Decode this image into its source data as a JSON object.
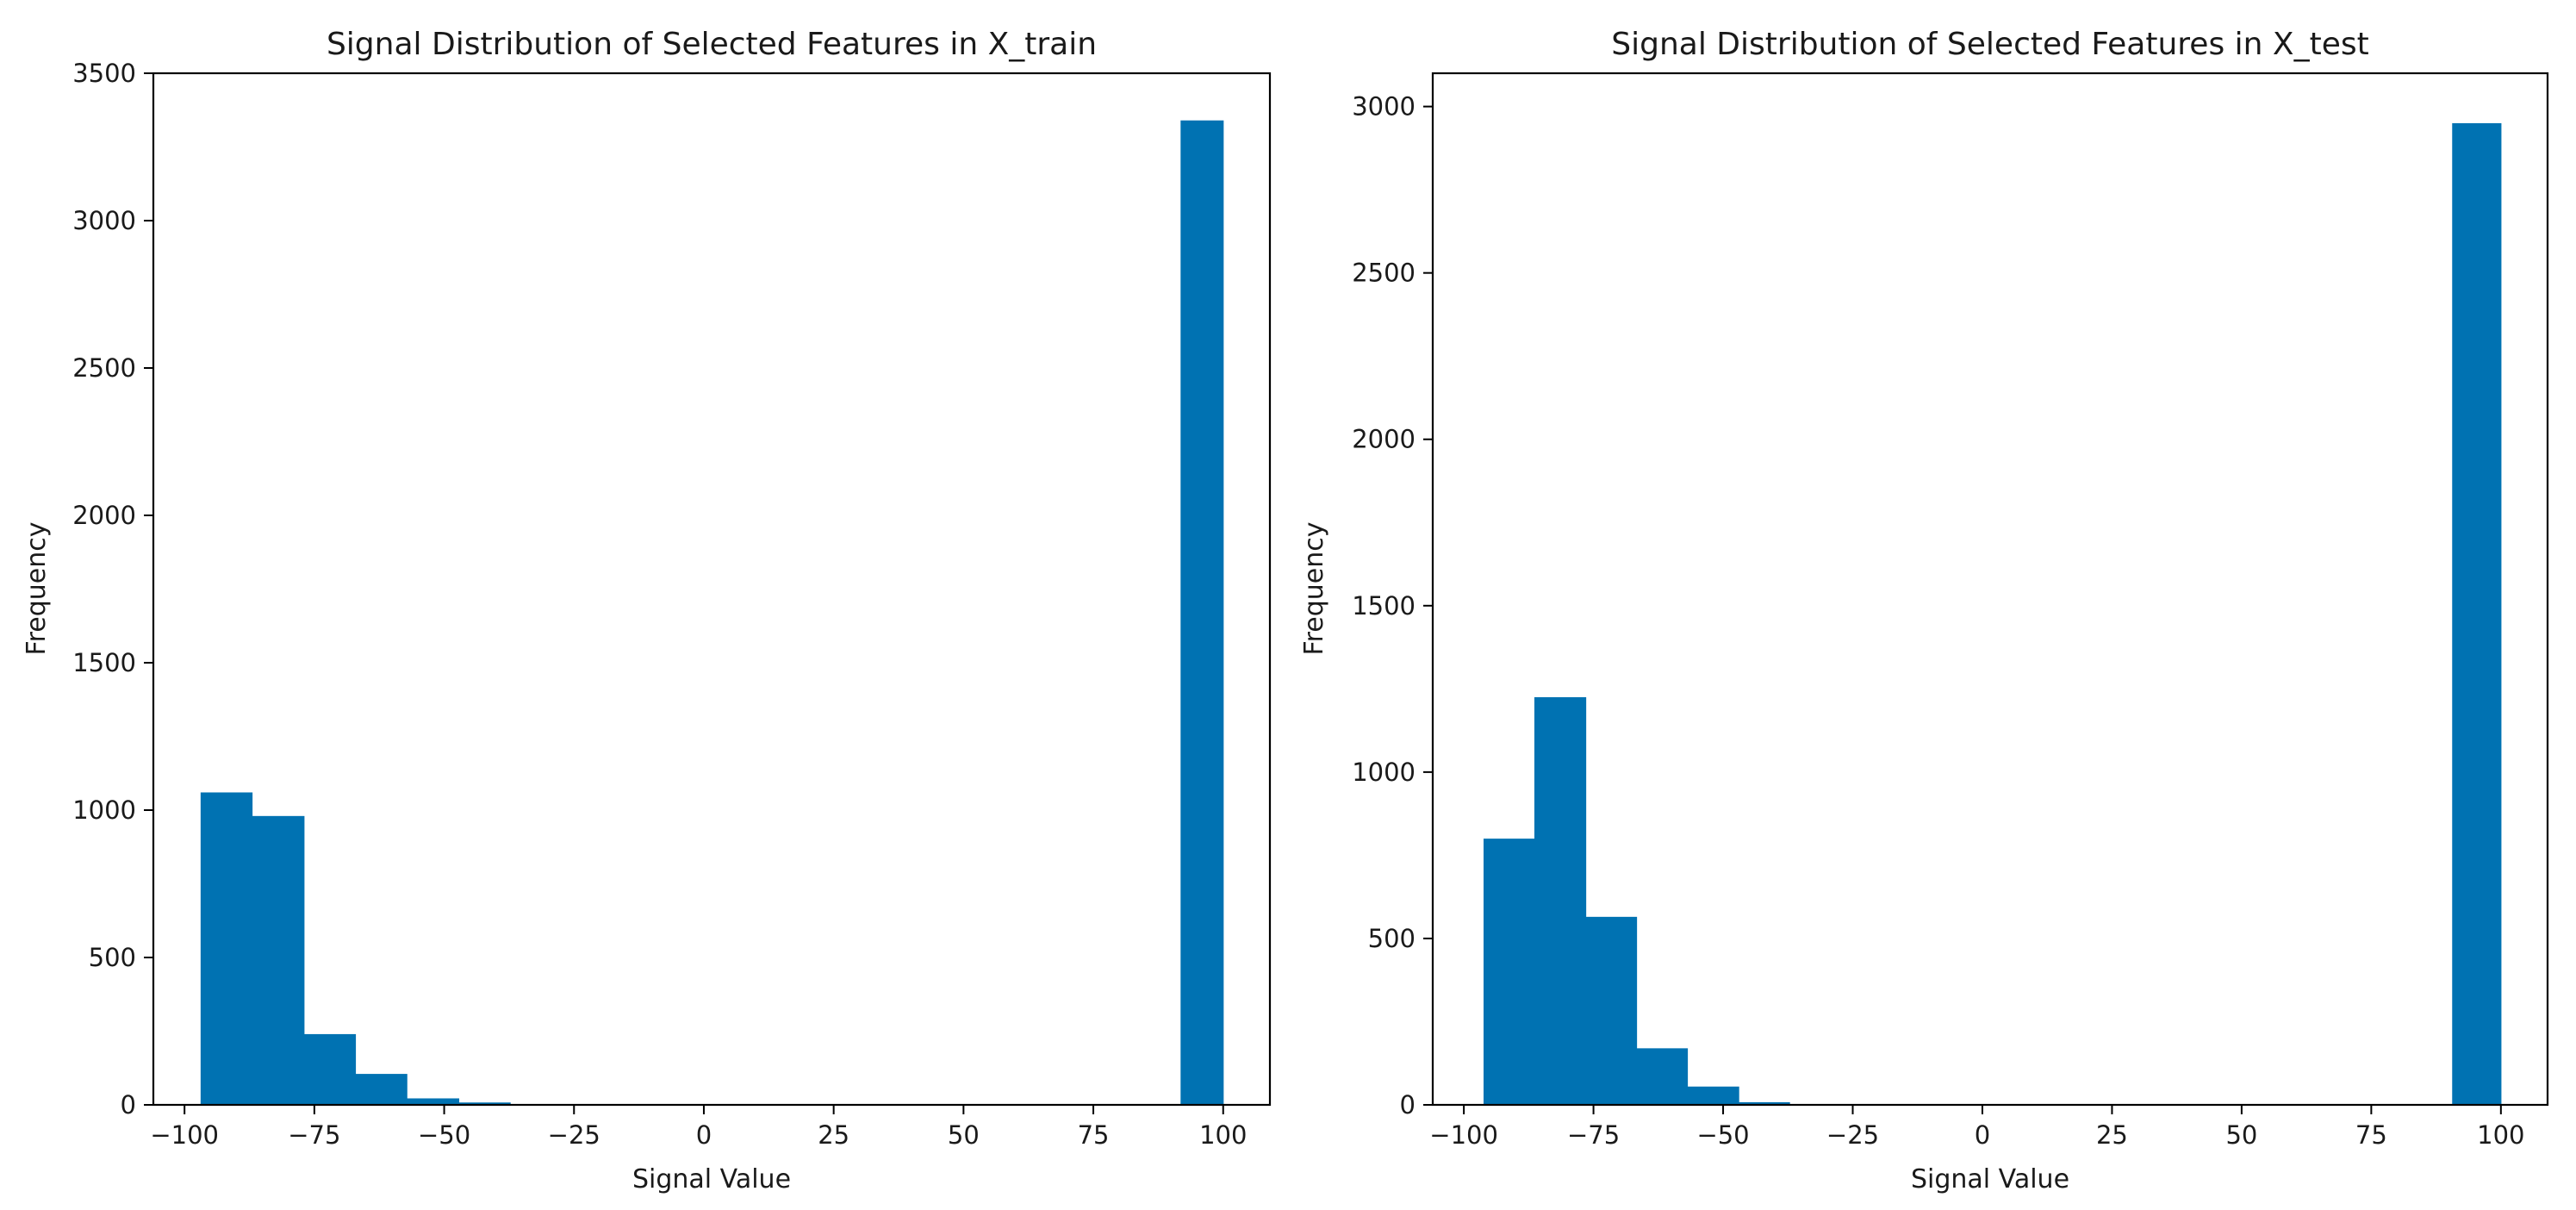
{
  "chart_data": [
    {
      "type": "bar",
      "title": "Signal Distribution of Selected Features in X_train",
      "xlabel": "Signal Value",
      "ylabel": "Frequency",
      "xlim": [
        -106,
        109
      ],
      "ylim": [
        0,
        3500
      ],
      "xticks": [
        -100,
        -75,
        -50,
        -25,
        0,
        25,
        50,
        75,
        100
      ],
      "xtick_labels": [
        "−100",
        "−75",
        "−50",
        "−25",
        "0",
        "25",
        "50",
        "75",
        "100"
      ],
      "yticks": [
        0,
        500,
        1000,
        1500,
        2000,
        2500,
        3000,
        3500
      ],
      "ytick_labels": [
        "0",
        "500",
        "1000",
        "1500",
        "2000",
        "2500",
        "3000",
        "3500"
      ],
      "bin_edges": [
        -96.9,
        -87.0,
        -77.0,
        -67.1,
        -57.2,
        -47.2,
        -37.3,
        -27.4,
        -17.4,
        -7.5,
        2.4,
        12.4,
        22.3,
        32.2,
        42.2,
        52.1,
        62.0,
        72.0,
        81.9,
        91.8,
        100
      ],
      "values": [
        1060,
        980,
        240,
        105,
        22,
        8,
        0,
        0,
        0,
        0,
        0,
        0,
        0,
        0,
        0,
        0,
        0,
        0,
        0,
        3340
      ],
      "bar_color": "#0072b2",
      "grid": false
    },
    {
      "type": "bar",
      "title": "Signal Distribution of Selected Features in X_test",
      "xlabel": "Signal Value",
      "ylabel": "Frequency",
      "xlim": [
        -106,
        109
      ],
      "ylim": [
        0,
        3100
      ],
      "xticks": [
        -100,
        -75,
        -50,
        -25,
        0,
        25,
        50,
        75,
        100
      ],
      "xtick_labels": [
        "−100",
        "−75",
        "−50",
        "−25",
        "0",
        "25",
        "50",
        "75",
        "100"
      ],
      "yticks": [
        0,
        500,
        1000,
        1500,
        2000,
        2500,
        3000
      ],
      "ytick_labels": [
        "0",
        "500",
        "1000",
        "1500",
        "2000",
        "2500",
        "3000"
      ],
      "bin_edges": [
        -96.2,
        -86.4,
        -76.5,
        -66.7,
        -56.9,
        -47.0,
        -37.2,
        -27.4,
        -17.5,
        -7.7,
        2.1,
        12.0,
        21.8,
        31.6,
        41.5,
        51.3,
        61.1,
        71.0,
        80.8,
        90.6,
        100
      ],
      "values": [
        800,
        1225,
        565,
        170,
        55,
        8,
        0,
        0,
        0,
        0,
        0,
        0,
        0,
        0,
        0,
        0,
        0,
        0,
        0,
        2950
      ],
      "bar_color": "#0072b2",
      "grid": false
    }
  ]
}
